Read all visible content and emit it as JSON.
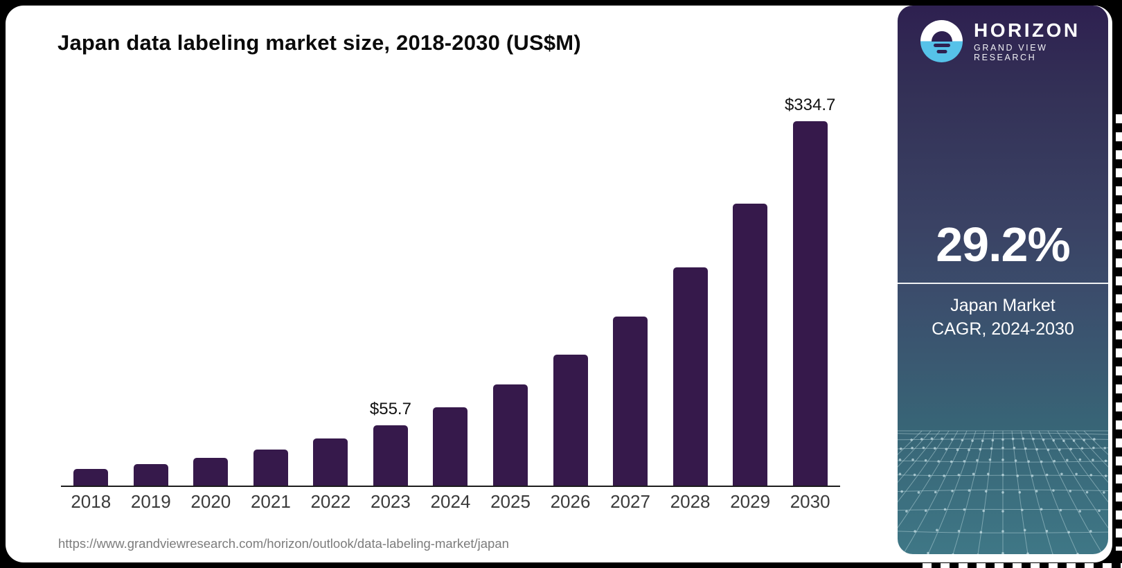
{
  "page": {
    "background": "#000000",
    "card_background": "#ffffff"
  },
  "header": {
    "title": "Japan data labeling market size, 2018-2030 (US$M)"
  },
  "footer": {
    "source_url": "https://www.grandviewresearch.com/horizon/outlook/data-labeling-market/japan"
  },
  "sidebar": {
    "logo": {
      "brand": "HORIZON",
      "subtitle": "GRAND VIEW RESEARCH",
      "icon": "horizon-sun-logo",
      "icon_blue": "#56c2e9",
      "icon_dark": "#2e2050"
    },
    "stat_value": "29.2%",
    "stat_label_line1": "Japan Market",
    "stat_label_line2": "CAGR, 2024-2030",
    "gradient_top": "#2e2050",
    "gradient_mid": "#3b4f6d",
    "gradient_bottom": "#3f7786"
  },
  "chart_data": {
    "type": "bar",
    "title": "Japan data labeling market size, 2018-2030 (US$M)",
    "categories": [
      "2018",
      "2019",
      "2020",
      "2021",
      "2022",
      "2023",
      "2024",
      "2025",
      "2026",
      "2027",
      "2028",
      "2029",
      "2030"
    ],
    "values": [
      15.5,
      20.0,
      25.8,
      33.4,
      43.1,
      55.7,
      72.0,
      93.0,
      120.1,
      155.2,
      200.5,
      259.1,
      334.7
    ],
    "point_labels": [
      "",
      "",
      "",
      "",
      "",
      "$55.7",
      "",
      "",
      "",
      "",
      "",
      "",
      "$334.7"
    ],
    "bar_color": "#36194b",
    "xlabel": "",
    "ylabel": "US$M",
    "ylim": [
      0,
      340
    ],
    "grid": false,
    "legend": "none",
    "y_axis_visible": false
  }
}
